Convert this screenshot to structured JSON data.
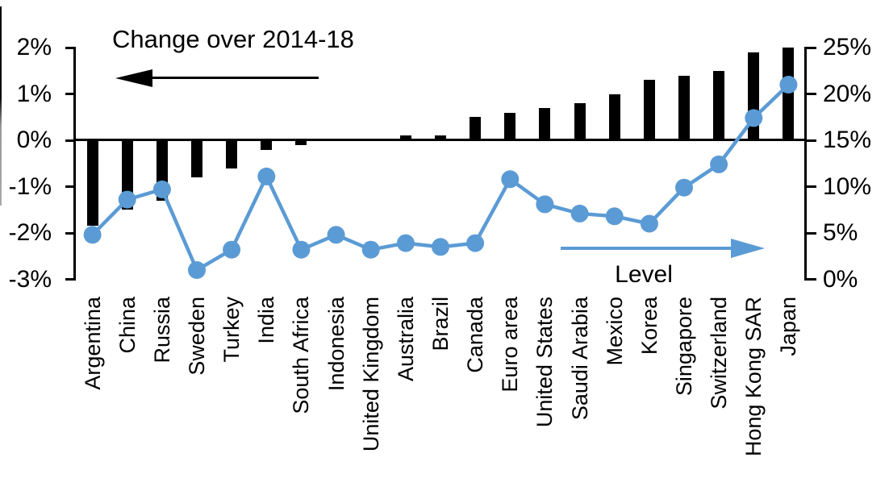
{
  "figure": {
    "title": "Change over 2014-18",
    "level_label": "Level"
  },
  "colors": {
    "bar": "#000000",
    "line": "#5b9bd5",
    "text": "#000000",
    "background": "#ffffff"
  },
  "chart_data": {
    "type": "bar",
    "subtype": "dual-axis combo: bars (left axis) + line with markers (right axis)",
    "title": "Change over 2014-18",
    "categories": [
      "Argentina",
      "China",
      "Russia",
      "Sweden",
      "Turkey",
      "India",
      "South Africa",
      "Indonesia",
      "United Kingdom",
      "Australia",
      "Brazil",
      "Canada",
      "Euro area",
      "United States",
      "Saudi Arabia",
      "Mexico",
      "Korea",
      "Singapore",
      "Switzerland",
      "Hong Kong SAR",
      "Japan"
    ],
    "series": [
      {
        "name": "Change over 2014-18",
        "type": "bar",
        "axis": "left",
        "unit": "%",
        "color": "#000000",
        "values": [
          -1.85,
          -1.5,
          -1.3,
          -0.8,
          -0.6,
          -0.2,
          -0.1,
          0.0,
          0.0,
          0.1,
          0.1,
          0.5,
          0.6,
          0.7,
          0.8,
          1.0,
          1.3,
          1.4,
          1.5,
          1.9,
          2.0
        ]
      },
      {
        "name": "Level",
        "type": "line",
        "axis": "right",
        "unit": "%",
        "color": "#5b9bd5",
        "values": [
          4.8,
          8.6,
          9.7,
          1.0,
          3.2,
          11.1,
          3.2,
          4.8,
          3.2,
          3.9,
          3.5,
          3.9,
          10.8,
          8.1,
          7.1,
          6.8,
          6.0,
          9.9,
          12.4,
          17.4,
          21.0
        ]
      }
    ],
    "left_axis": {
      "tick_labels": [
        "2%",
        "1%",
        "0%",
        "-1%",
        "-2%",
        "-3%"
      ],
      "tick_values": [
        2,
        1,
        0,
        -1,
        -2,
        -3
      ],
      "min": -3,
      "max": 2
    },
    "right_axis": {
      "tick_labels": [
        "25%",
        "20%",
        "15%",
        "10%",
        "5%",
        "0%"
      ],
      "tick_values": [
        25,
        20,
        15,
        10,
        5,
        0
      ],
      "min": 0,
      "max": 25
    },
    "grid": false,
    "legend_position": "in-plot arrow annotations: left-pointing black arrow for bars, right-pointing blue arrow for line"
  }
}
